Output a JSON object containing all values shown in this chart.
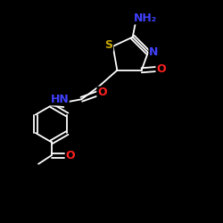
{
  "background_color": "#000000",
  "bond_color": "#ffffff",
  "atom_colors": {
    "N": "#4040ff",
    "O": "#ff2020",
    "S": "#ccaa00",
    "NH": "#4040ff",
    "NH2": "#4040ff"
  }
}
